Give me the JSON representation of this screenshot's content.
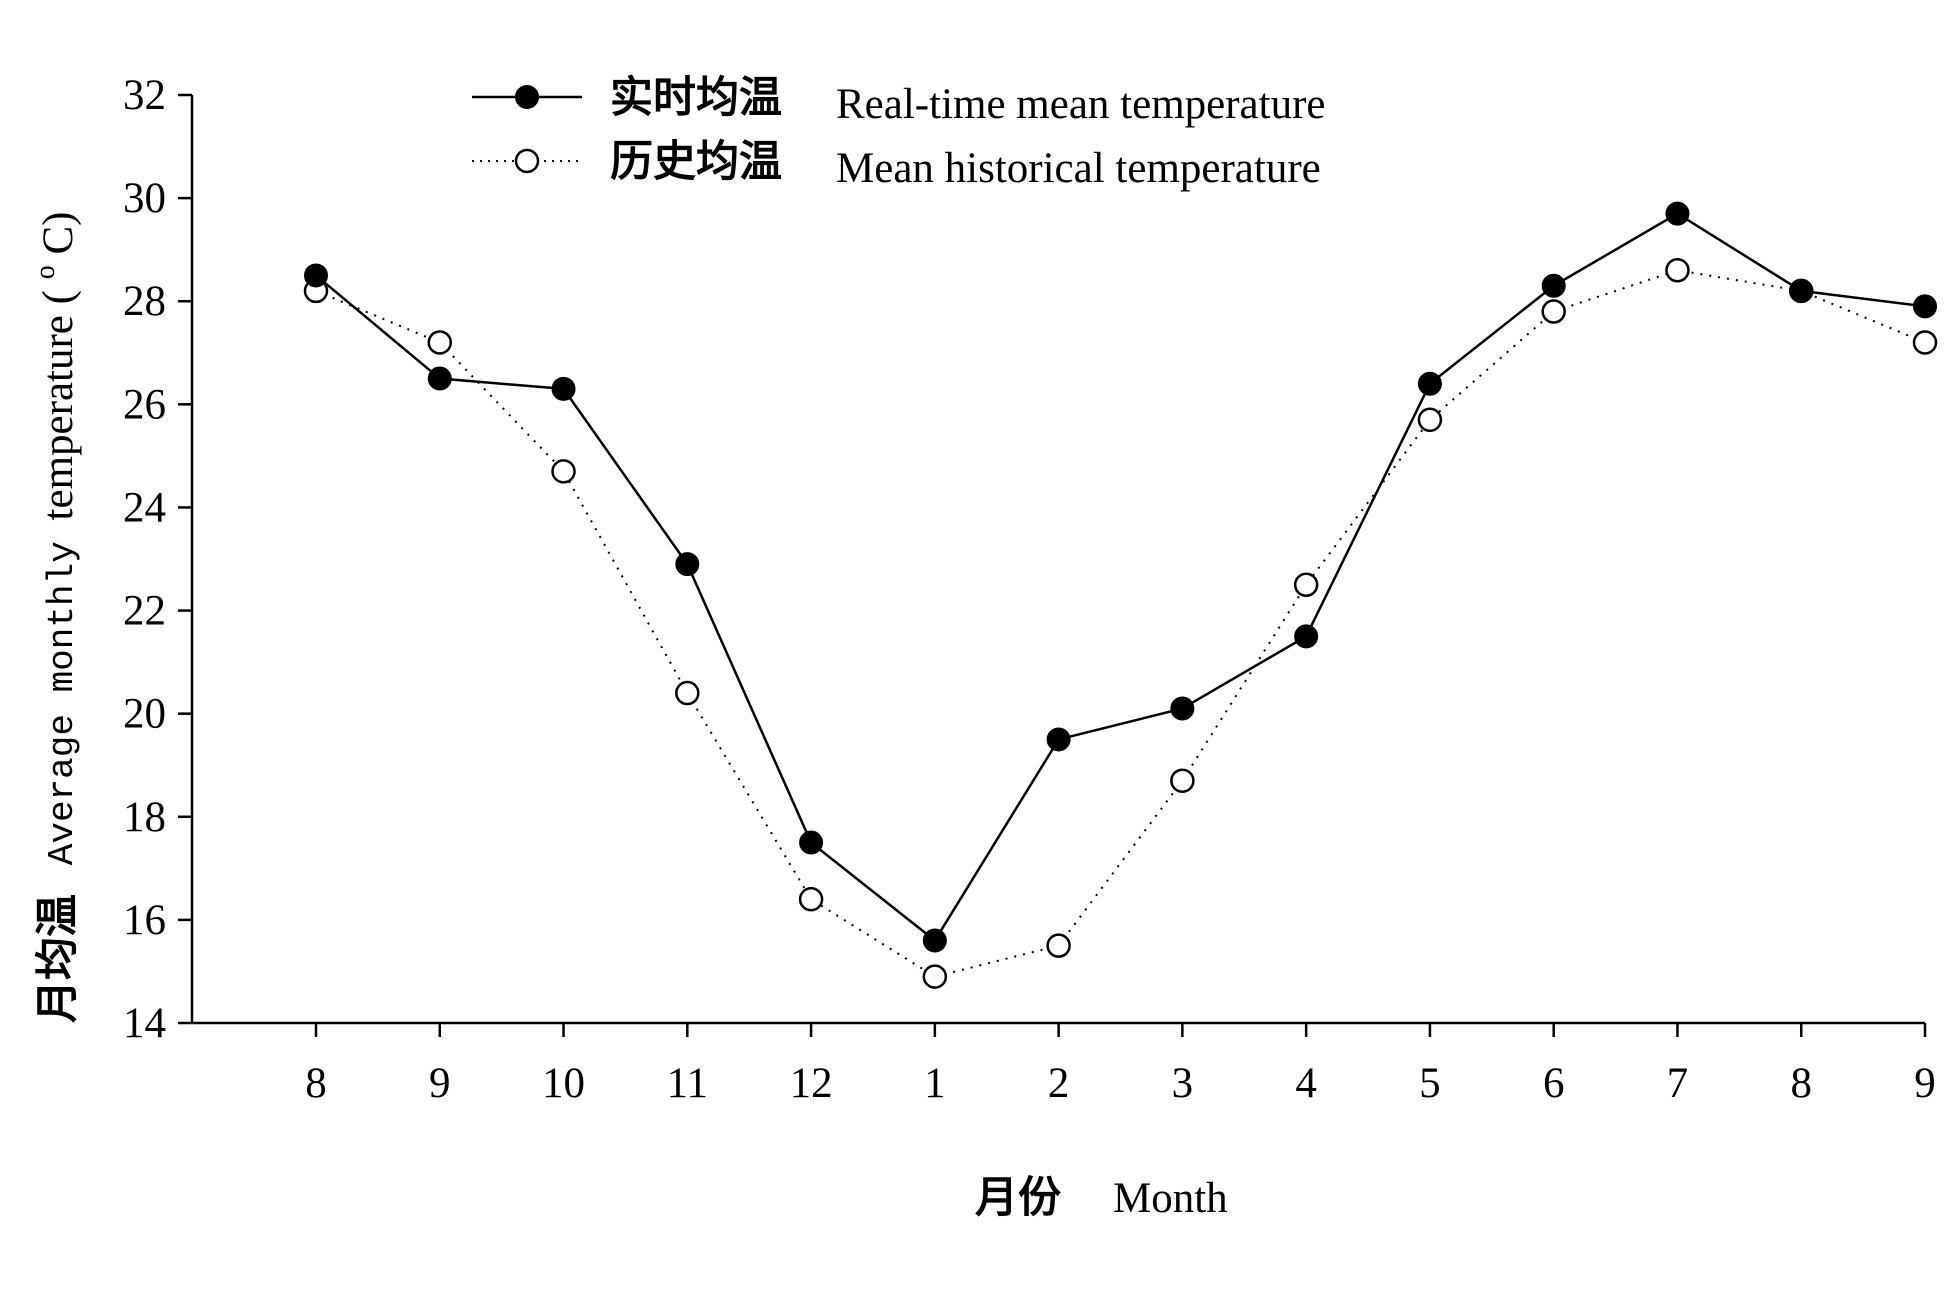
{
  "chart_data": {
    "type": "line",
    "xlabel_cn": "月份",
    "xlabel_en": "Month",
    "ylabel_cn": "月均温",
    "ylabel_en_mono": "Average monthly",
    "ylabel_en_serif": "temperature (",
    "ylabel_sup": "o",
    "ylabel_unit": "C)",
    "ylim": [
      14,
      32
    ],
    "yticks": [
      14,
      16,
      18,
      20,
      22,
      24,
      26,
      28,
      30,
      32
    ],
    "categories": [
      "8",
      "9",
      "10",
      "11",
      "12",
      "1",
      "2",
      "3",
      "4",
      "5",
      "6",
      "7",
      "8",
      "9"
    ],
    "grid": false,
    "legend_position": "top-left",
    "series": [
      {
        "name_cn": "实时均温",
        "name_en": "Real-time mean temperature",
        "marker": "filled-circle",
        "line": "solid",
        "color": "#000000",
        "values": [
          28.5,
          26.5,
          26.3,
          22.9,
          17.5,
          15.6,
          19.5,
          20.1,
          21.5,
          26.4,
          28.3,
          29.7,
          28.2,
          27.9
        ]
      },
      {
        "name_cn": "历史均温",
        "name_en": "Mean historical temperature",
        "marker": "open-circle",
        "line": "dotted",
        "color": "#000000",
        "values": [
          28.2,
          27.2,
          24.7,
          20.4,
          16.4,
          14.9,
          15.5,
          18.7,
          22.5,
          25.7,
          27.8,
          28.6,
          28.2,
          27.2
        ]
      }
    ]
  }
}
